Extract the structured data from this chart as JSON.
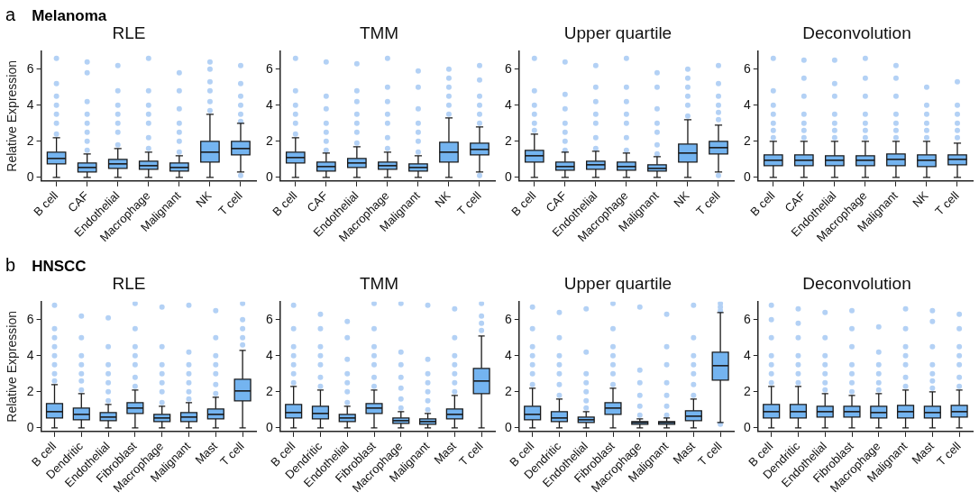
{
  "chart_data": [
    {
      "type": "box",
      "title": "RLE",
      "ylabel": "Relative Expression",
      "annotations": [
        "a",
        "Melanoma"
      ],
      "categories": [
        "B cell",
        "CAF",
        "Endothelial",
        "Macrophage",
        "Malignant",
        "NK",
        "T cell"
      ],
      "ylim": [
        -0.2,
        7
      ],
      "yticks": [
        0,
        2,
        4,
        6
      ],
      "grid": false,
      "legend": false,
      "marker": "circle",
      "series": [
        {
          "color": "#74b4f0",
          "boxes": [
            {
              "low": 0,
              "q1": 0.75,
              "median": 1.05,
              "q3": 1.4,
              "high": 2.2
            },
            {
              "low": 0,
              "q1": 0.3,
              "median": 0.55,
              "q3": 0.8,
              "high": 1.3
            },
            {
              "low": 0,
              "q1": 0.5,
              "median": 0.75,
              "q3": 1.0,
              "high": 1.6
            },
            {
              "low": 0,
              "q1": 0.45,
              "median": 0.65,
              "q3": 0.9,
              "high": 1.4
            },
            {
              "low": 0,
              "q1": 0.35,
              "median": 0.55,
              "q3": 0.8,
              "high": 1.2
            },
            {
              "low": 0,
              "q1": 0.85,
              "median": 1.4,
              "q3": 2.0,
              "high": 3.5
            },
            {
              "low": 0.3,
              "q1": 1.25,
              "median": 1.6,
              "q3": 2.0,
              "high": 3.0
            }
          ]
        },
        {
          "type": "scatter",
          "color": "#b3d1f5",
          "x": [
            "B cell",
            "B cell",
            "B cell",
            "B cell",
            "B cell",
            "B cell",
            "B cell",
            "CAF",
            "CAF",
            "CAF",
            "CAF",
            "CAF",
            "CAF",
            "CAF",
            "CAF",
            "Endothelial",
            "Endothelial",
            "Endothelial",
            "Endothelial",
            "Endothelial",
            "Endothelial",
            "Endothelial",
            "Macrophage",
            "Macrophage",
            "Macrophage",
            "Macrophage",
            "Macrophage",
            "Macrophage",
            "Macrophage",
            "Malignant",
            "Malignant",
            "Malignant",
            "Malignant",
            "Malignant",
            "Malignant",
            "Malignant",
            "NK",
            "NK",
            "NK",
            "NK",
            "NK",
            "NK",
            "T cell",
            "T cell",
            "T cell",
            "T cell",
            "T cell",
            "T cell",
            "T cell"
          ],
          "values": [
            2.4,
            3,
            3.5,
            4,
            4.5,
            5.2,
            6.6,
            1.5,
            2,
            2.5,
            3,
            3.5,
            4.2,
            5.8,
            6.4,
            1.8,
            2.5,
            3,
            3.5,
            4,
            4.8,
            6.2,
            1.6,
            2.2,
            3,
            3.5,
            4,
            4.8,
            6.6,
            1.4,
            2,
            2.5,
            3,
            3.8,
            4.8,
            5.8,
            3.7,
            4.2,
            4.8,
            5.3,
            6,
            6.4,
            0.1,
            3.1,
            3.5,
            4,
            4.5,
            5.2,
            6.2
          ]
        }
      ]
    },
    {
      "type": "box",
      "title": "TMM",
      "categories": [
        "B cell",
        "CAF",
        "Endothelial",
        "Macrophage",
        "Malignant",
        "NK",
        "T cell"
      ],
      "ylim": [
        -0.2,
        7
      ],
      "yticks": [
        0,
        2,
        4,
        6
      ],
      "grid": false,
      "legend": false,
      "marker": "circle",
      "series": [
        {
          "color": "#74b4f0",
          "boxes": [
            {
              "low": 0,
              "q1": 0.8,
              "median": 1.1,
              "q3": 1.4,
              "high": 2.2
            },
            {
              "low": 0,
              "q1": 0.35,
              "median": 0.6,
              "q3": 0.85,
              "high": 1.35
            },
            {
              "low": 0,
              "q1": 0.55,
              "median": 0.8,
              "q3": 1.05,
              "high": 1.7
            },
            {
              "low": 0,
              "q1": 0.45,
              "median": 0.65,
              "q3": 0.85,
              "high": 1.4
            },
            {
              "low": 0,
              "q1": 0.35,
              "median": 0.55,
              "q3": 0.75,
              "high": 1.2
            },
            {
              "low": 0,
              "q1": 0.85,
              "median": 1.4,
              "q3": 1.95,
              "high": 3.3
            },
            {
              "low": 0.3,
              "q1": 1.25,
              "median": 1.55,
              "q3": 1.9,
              "high": 2.8
            }
          ]
        },
        {
          "type": "scatter",
          "color": "#b3d1f5",
          "x": [
            "B cell",
            "B cell",
            "B cell",
            "B cell",
            "B cell",
            "B cell",
            "CAF",
            "CAF",
            "CAF",
            "CAF",
            "CAF",
            "CAF",
            "CAF",
            "Endothelial",
            "Endothelial",
            "Endothelial",
            "Endothelial",
            "Endothelial",
            "Endothelial",
            "Endothelial",
            "Macrophage",
            "Macrophage",
            "Macrophage",
            "Macrophage",
            "Macrophage",
            "Macrophage",
            "Macrophage",
            "Malignant",
            "Malignant",
            "Malignant",
            "Malignant",
            "Malignant",
            "Malignant",
            "Malignant",
            "NK",
            "NK",
            "NK",
            "NK",
            "NK",
            "NK",
            "T cell",
            "T cell",
            "T cell",
            "T cell",
            "T cell",
            "T cell",
            "T cell"
          ],
          "values": [
            2.4,
            3,
            3.5,
            4,
            4.8,
            6.6,
            1.5,
            2,
            2.5,
            3,
            3.8,
            4.5,
            6.4,
            1.9,
            2.5,
            3,
            3.5,
            4.2,
            4.8,
            6.3,
            1.6,
            2.2,
            3,
            3.5,
            4.2,
            5,
            6.6,
            1.4,
            2,
            2.5,
            3,
            3.8,
            5,
            5.9,
            3.5,
            4,
            4.5,
            5,
            5.5,
            6,
            0.1,
            3,
            3.5,
            4,
            4.5,
            5.4,
            6.2
          ]
        }
      ]
    },
    {
      "type": "box",
      "title": "Upper quartile",
      "categories": [
        "B cell",
        "CAF",
        "Endothelial",
        "Macrophage",
        "Malignant",
        "NK",
        "T cell"
      ],
      "ylim": [
        -0.2,
        7
      ],
      "yticks": [
        0,
        2,
        4,
        6
      ],
      "grid": false,
      "legend": false,
      "marker": "circle",
      "series": [
        {
          "color": "#74b4f0",
          "boxes": [
            {
              "low": 0,
              "q1": 0.85,
              "median": 1.2,
              "q3": 1.5,
              "high": 2.4
            },
            {
              "low": 0,
              "q1": 0.4,
              "median": 0.6,
              "q3": 0.85,
              "high": 1.4
            },
            {
              "low": 0,
              "q1": 0.45,
              "median": 0.7,
              "q3": 0.9,
              "high": 1.45
            },
            {
              "low": 0,
              "q1": 0.4,
              "median": 0.6,
              "q3": 0.85,
              "high": 1.35
            },
            {
              "low": 0,
              "q1": 0.35,
              "median": 0.5,
              "q3": 0.7,
              "high": 1.15
            },
            {
              "low": 0,
              "q1": 0.85,
              "median": 1.35,
              "q3": 1.85,
              "high": 3.2
            },
            {
              "low": 0.3,
              "q1": 1.3,
              "median": 1.65,
              "q3": 2.0,
              "high": 2.9
            }
          ]
        },
        {
          "type": "scatter",
          "color": "#b3d1f5",
          "x": [
            "B cell",
            "B cell",
            "B cell",
            "B cell",
            "B cell",
            "B cell",
            "CAF",
            "CAF",
            "CAF",
            "CAF",
            "CAF",
            "CAF",
            "CAF",
            "Endothelial",
            "Endothelial",
            "Endothelial",
            "Endothelial",
            "Endothelial",
            "Endothelial",
            "Endothelial",
            "Macrophage",
            "Macrophage",
            "Macrophage",
            "Macrophage",
            "Macrophage",
            "Macrophage",
            "Macrophage",
            "Malignant",
            "Malignant",
            "Malignant",
            "Malignant",
            "Malignant",
            "Malignant",
            "Malignant",
            "NK",
            "NK",
            "NK",
            "NK",
            "NK",
            "NK",
            "T cell",
            "T cell",
            "T cell",
            "T cell",
            "T cell",
            "T cell",
            "T cell"
          ],
          "values": [
            2.6,
            3,
            3.5,
            4,
            4.8,
            6.6,
            1.5,
            2,
            2.5,
            3,
            3.8,
            4.6,
            6.4,
            1.6,
            2.2,
            3,
            3.5,
            4.2,
            5,
            6.2,
            1.5,
            2.2,
            3,
            3.5,
            4.2,
            5,
            6.6,
            1.3,
            1.8,
            2.5,
            3,
            3.8,
            5,
            5.8,
            3.4,
            4,
            4.5,
            5,
            5.5,
            6,
            0.1,
            3.2,
            3.6,
            4,
            4.5,
            5.2,
            6.2
          ]
        }
      ]
    },
    {
      "type": "box",
      "title": "Deconvolution",
      "categories": [
        "B cell",
        "CAF",
        "Endothelial",
        "Macrophage",
        "Malignant",
        "NK",
        "T cell"
      ],
      "ylim": [
        -0.2,
        7
      ],
      "yticks": [
        0,
        2,
        4,
        6
      ],
      "grid": false,
      "legend": false,
      "marker": "circle",
      "series": [
        {
          "color": "#74b4f0",
          "boxes": [
            {
              "low": 0,
              "q1": 0.65,
              "median": 0.95,
              "q3": 1.25,
              "high": 2.0
            },
            {
              "low": 0,
              "q1": 0.65,
              "median": 0.95,
              "q3": 1.25,
              "high": 2.0
            },
            {
              "low": 0,
              "q1": 0.65,
              "median": 0.95,
              "q3": 1.2,
              "high": 2.0
            },
            {
              "low": 0,
              "q1": 0.65,
              "median": 0.95,
              "q3": 1.2,
              "high": 2.0
            },
            {
              "low": 0,
              "q1": 0.65,
              "median": 1.0,
              "q3": 1.3,
              "high": 2.0
            },
            {
              "low": 0,
              "q1": 0.6,
              "median": 0.95,
              "q3": 1.25,
              "high": 2.0
            },
            {
              "low": 0,
              "q1": 0.7,
              "median": 1.0,
              "q3": 1.25,
              "high": 1.9
            }
          ]
        },
        {
          "type": "scatter",
          "color": "#b3d1f5",
          "x": [
            "B cell",
            "B cell",
            "B cell",
            "B cell",
            "B cell",
            "B cell",
            "B cell",
            "CAF",
            "CAF",
            "CAF",
            "CAF",
            "CAF",
            "CAF",
            "CAF",
            "Endothelial",
            "Endothelial",
            "Endothelial",
            "Endothelial",
            "Endothelial",
            "Endothelial",
            "Endothelial",
            "Macrophage",
            "Macrophage",
            "Macrophage",
            "Macrophage",
            "Macrophage",
            "Macrophage",
            "Macrophage",
            "Malignant",
            "Malignant",
            "Malignant",
            "Malignant",
            "Malignant",
            "Malignant",
            "Malignant",
            "NK",
            "NK",
            "NK",
            "NK",
            "NK",
            "NK",
            "T cell",
            "T cell",
            "T cell",
            "T cell",
            "T cell",
            "T cell"
          ],
          "values": [
            2.2,
            2.6,
            3,
            3.5,
            4,
            4.8,
            6.6,
            2.2,
            2.6,
            3,
            3.5,
            4.5,
            5.5,
            6.5,
            2.2,
            2.6,
            3,
            3.5,
            4.5,
            5.2,
            6.5,
            2.2,
            2.6,
            3,
            3.5,
            4.5,
            5.5,
            6.6,
            2.2,
            2.6,
            3,
            3.5,
            4.5,
            5.5,
            6.2,
            2.2,
            2.6,
            3,
            3.5,
            4,
            5,
            2.2,
            2.6,
            3,
            3.5,
            4,
            5.3
          ]
        }
      ]
    },
    {
      "type": "box",
      "title": "RLE",
      "ylabel": "Relative Expression",
      "annotations": [
        "b",
        "HNSCC"
      ],
      "categories": [
        "B cell",
        "Dendritic",
        "Endothelial",
        "Fibroblast",
        "Macrophage",
        "Malignant",
        "Mast",
        "T cell"
      ],
      "ylim": [
        -0.2,
        7
      ],
      "yticks": [
        0,
        2,
        4,
        6
      ],
      "grid": false,
      "legend": false,
      "marker": "circle",
      "series": [
        {
          "color": "#74b4f0",
          "boxes": [
            {
              "low": 0,
              "q1": 0.55,
              "median": 0.9,
              "q3": 1.35,
              "high": 2.4
            },
            {
              "low": 0,
              "q1": 0.45,
              "median": 0.75,
              "q3": 1.1,
              "high": 1.9
            },
            {
              "low": 0,
              "q1": 0.4,
              "median": 0.6,
              "q3": 0.85,
              "high": 1.3
            },
            {
              "low": 0,
              "q1": 0.8,
              "median": 1.1,
              "q3": 1.4,
              "high": 2.1
            },
            {
              "low": 0,
              "q1": 0.35,
              "median": 0.55,
              "q3": 0.75,
              "high": 1.2
            },
            {
              "low": 0,
              "q1": 0.35,
              "median": 0.6,
              "q3": 0.85,
              "high": 1.4
            },
            {
              "low": 0,
              "q1": 0.5,
              "median": 0.75,
              "q3": 1.05,
              "high": 1.7
            },
            {
              "low": 0,
              "q1": 1.5,
              "median": 2.05,
              "q3": 2.7,
              "high": 4.3
            }
          ]
        },
        {
          "type": "scatter",
          "color": "#b3d1f5",
          "x": [
            "B cell",
            "B cell",
            "B cell",
            "B cell",
            "B cell",
            "B cell",
            "B cell",
            "B cell",
            "Dendritic",
            "Dendritic",
            "Dendritic",
            "Dendritic",
            "Dendritic",
            "Dendritic",
            "Dendritic",
            "Endothelial",
            "Endothelial",
            "Endothelial",
            "Endothelial",
            "Endothelial",
            "Endothelial",
            "Endothelial",
            "Fibroblast",
            "Fibroblast",
            "Fibroblast",
            "Fibroblast",
            "Fibroblast",
            "Fibroblast",
            "Fibroblast",
            "Macrophage",
            "Macrophage",
            "Macrophage",
            "Macrophage",
            "Macrophage",
            "Macrophage",
            "Macrophage",
            "Malignant",
            "Malignant",
            "Malignant",
            "Malignant",
            "Malignant",
            "Malignant",
            "Malignant",
            "Mast",
            "Mast",
            "Mast",
            "Mast",
            "Mast",
            "Mast",
            "Mast",
            "T cell",
            "T cell",
            "T cell",
            "T cell",
            "T cell"
          ],
          "values": [
            2.6,
            3,
            3.5,
            4,
            4.5,
            5,
            5.5,
            6.8,
            2.1,
            2.6,
            3,
            3.5,
            4,
            5,
            6.2,
            1.5,
            2,
            2.5,
            3,
            3.5,
            4.5,
            6.1,
            2.3,
            2.8,
            3.5,
            4,
            4.5,
            5.5,
            6.9,
            1.4,
            2,
            2.5,
            3,
            3.5,
            4.5,
            6.7,
            1.6,
            2,
            2.5,
            3,
            3.5,
            4.2,
            6.8,
            1.9,
            2.4,
            3,
            3.5,
            4,
            5,
            6.5,
            4.6,
            5,
            5.5,
            6,
            6.9
          ]
        }
      ]
    },
    {
      "type": "box",
      "title": "TMM",
      "categories": [
        "B cell",
        "Dendritic",
        "Endothelial",
        "Fibroblast",
        "Macrophage",
        "Malignant",
        "Mast",
        "T cell"
      ],
      "ylim": [
        -0.2,
        7
      ],
      "yticks": [
        0,
        2,
        4,
        6
      ],
      "grid": false,
      "legend": false,
      "marker": "circle",
      "series": [
        {
          "color": "#74b4f0",
          "boxes": [
            {
              "low": 0,
              "q1": 0.55,
              "median": 0.85,
              "q3": 1.3,
              "high": 2.3
            },
            {
              "low": 0,
              "q1": 0.5,
              "median": 0.8,
              "q3": 1.2,
              "high": 2.1
            },
            {
              "low": 0,
              "q1": 0.35,
              "median": 0.55,
              "q3": 0.75,
              "high": 1.2
            },
            {
              "low": 0,
              "q1": 0.8,
              "median": 1.1,
              "q3": 1.35,
              "high": 2.1
            },
            {
              "low": 0,
              "q1": 0.25,
              "median": 0.4,
              "q3": 0.55,
              "high": 0.9
            },
            {
              "low": 0,
              "q1": 0.2,
              "median": 0.35,
              "q3": 0.5,
              "high": 0.8
            },
            {
              "low": 0,
              "q1": 0.5,
              "median": 0.75,
              "q3": 1.05,
              "high": 1.8
            },
            {
              "low": 0,
              "q1": 1.9,
              "median": 2.6,
              "q3": 3.3,
              "high": 5.1
            }
          ]
        },
        {
          "type": "scatter",
          "color": "#b3d1f5",
          "x": [
            "B cell",
            "B cell",
            "B cell",
            "B cell",
            "B cell",
            "B cell",
            "B cell",
            "Dendritic",
            "Dendritic",
            "Dendritic",
            "Dendritic",
            "Dendritic",
            "Dendritic",
            "Dendritic",
            "Endothelial",
            "Endothelial",
            "Endothelial",
            "Endothelial",
            "Endothelial",
            "Endothelial",
            "Endothelial",
            "Fibroblast",
            "Fibroblast",
            "Fibroblast",
            "Fibroblast",
            "Fibroblast",
            "Fibroblast",
            "Fibroblast",
            "Macrophage",
            "Macrophage",
            "Macrophage",
            "Macrophage",
            "Macrophage",
            "Macrophage",
            "Macrophage",
            "Malignant",
            "Malignant",
            "Malignant",
            "Malignant",
            "Malignant",
            "Malignant",
            "Malignant",
            "Mast",
            "Mast",
            "Mast",
            "Mast",
            "Mast",
            "Mast",
            "Mast",
            "T cell",
            "T cell",
            "T cell",
            "T cell"
          ],
          "values": [
            2.5,
            3,
            3.5,
            4,
            4.5,
            5.5,
            6.8,
            2.3,
            2.8,
            3.5,
            4,
            4.5,
            5.5,
            6.3,
            1.4,
            2,
            2.5,
            3,
            3.8,
            5,
            5.9,
            2.3,
            2.8,
            3.5,
            4,
            4.5,
            5.5,
            6.9,
            1.1,
            1.6,
            2.2,
            2.8,
            3.5,
            4.2,
            6.9,
            1,
            1.5,
            2,
            2.5,
            3,
            3.8,
            6.8,
            2,
            2.5,
            3,
            3.5,
            4,
            5,
            6.6,
            5.4,
            5.8,
            6.2,
            6.9
          ]
        }
      ]
    },
    {
      "type": "box",
      "title": "Upper quartile",
      "categories": [
        "B cell",
        "Dendritic",
        "Endothelial",
        "Fibroblast",
        "Macrophage",
        "Malignant",
        "Mast",
        "T cell"
      ],
      "ylim": [
        -0.2,
        7
      ],
      "yticks": [
        0,
        2,
        4,
        6
      ],
      "grid": false,
      "legend": false,
      "marker": "circle",
      "series": [
        {
          "color": "#74b4f0",
          "boxes": [
            {
              "low": 0,
              "q1": 0.45,
              "median": 0.75,
              "q3": 1.2,
              "high": 2.2
            },
            {
              "low": 0,
              "q1": 0.35,
              "median": 0.55,
              "q3": 0.9,
              "high": 1.6
            },
            {
              "low": 0,
              "q1": 0.3,
              "median": 0.45,
              "q3": 0.6,
              "high": 0.9
            },
            {
              "low": 0,
              "q1": 0.75,
              "median": 1.1,
              "q3": 1.4,
              "high": 2.2
            },
            {
              "low": 0,
              "q1": 0.2,
              "median": 0.3,
              "q3": 0.35,
              "high": 0.5
            },
            {
              "low": 0,
              "q1": 0.2,
              "median": 0.3,
              "q3": 0.35,
              "high": 0.55
            },
            {
              "low": 0,
              "q1": 0.4,
              "median": 0.65,
              "q3": 0.95,
              "high": 1.6
            },
            {
              "low": 0.3,
              "q1": 2.65,
              "median": 3.45,
              "q3": 4.2,
              "high": 6.4
            }
          ]
        },
        {
          "type": "scatter",
          "color": "#b3d1f5",
          "x": [
            "B cell",
            "B cell",
            "B cell",
            "B cell",
            "B cell",
            "B cell",
            "B cell",
            "Dendritic",
            "Dendritic",
            "Dendritic",
            "Dendritic",
            "Dendritic",
            "Dendritic",
            "Dendritic",
            "Endothelial",
            "Endothelial",
            "Endothelial",
            "Endothelial",
            "Endothelial",
            "Endothelial",
            "Endothelial",
            "Fibroblast",
            "Fibroblast",
            "Fibroblast",
            "Fibroblast",
            "Fibroblast",
            "Fibroblast",
            "Fibroblast",
            "Macrophage",
            "Macrophage",
            "Macrophage",
            "Macrophage",
            "Macrophage",
            "Macrophage",
            "Malignant",
            "Malignant",
            "Malignant",
            "Malignant",
            "Malignant",
            "Malignant",
            "Malignant",
            "Mast",
            "Mast",
            "Mast",
            "Mast",
            "Mast",
            "Mast",
            "Mast",
            "T cell",
            "T cell",
            "T cell",
            "T cell",
            "T cell"
          ],
          "values": [
            2.4,
            3,
            3.5,
            4,
            4.5,
            5.5,
            6.7,
            1.8,
            2.4,
            3,
            3.5,
            4,
            5,
            6.4,
            1.1,
            1.5,
            2,
            2.5,
            3,
            4.2,
            6.6,
            2.4,
            3,
            3.5,
            4,
            4.5,
            5.5,
            6.9,
            0.7,
            1.2,
            1.8,
            2.5,
            3.2,
            6.7,
            0.7,
            1.2,
            1.8,
            2.5,
            3.5,
            4.5,
            6.3,
            1.8,
            2.4,
            3,
            3.5,
            4,
            5,
            6.8,
            null,
            0.2,
            6.5,
            6.7,
            6.9
          ]
        }
      ]
    },
    {
      "type": "box",
      "title": "Deconvolution",
      "categories": [
        "B cell",
        "Dendritic",
        "Endothelial",
        "Fibroblast",
        "Macrophage",
        "Malignant",
        "Mast",
        "T cell"
      ],
      "ylim": [
        -0.2,
        7
      ],
      "yticks": [
        0,
        2,
        4,
        6
      ],
      "grid": false,
      "legend": false,
      "marker": "circle",
      "series": [
        {
          "color": "#74b4f0",
          "boxes": [
            {
              "low": 0,
              "q1": 0.55,
              "median": 0.9,
              "q3": 1.3,
              "high": 2.3
            },
            {
              "low": 0,
              "q1": 0.55,
              "median": 0.9,
              "q3": 1.3,
              "high": 2.3
            },
            {
              "low": 0,
              "q1": 0.6,
              "median": 0.9,
              "q3": 1.2,
              "high": 1.9
            },
            {
              "low": 0,
              "q1": 0.6,
              "median": 0.9,
              "q3": 1.2,
              "high": 1.8
            },
            {
              "low": 0,
              "q1": 0.55,
              "median": 0.85,
              "q3": 1.2,
              "high": 1.9
            },
            {
              "low": 0,
              "q1": 0.55,
              "median": 0.9,
              "q3": 1.25,
              "high": 2.1
            },
            {
              "low": 0,
              "q1": 0.55,
              "median": 0.85,
              "q3": 1.2,
              "high": 2.0
            },
            {
              "low": 0,
              "q1": 0.6,
              "median": 0.9,
              "q3": 1.25,
              "high": 2.1
            }
          ]
        },
        {
          "type": "scatter",
          "color": "#b3d1f5",
          "x": [
            "B cell",
            "B cell",
            "B cell",
            "B cell",
            "B cell",
            "B cell",
            "B cell",
            "Dendritic",
            "Dendritic",
            "Dendritic",
            "Dendritic",
            "Dendritic",
            "Dendritic",
            "Dendritic",
            "Endothelial",
            "Endothelial",
            "Endothelial",
            "Endothelial",
            "Endothelial",
            "Endothelial",
            "Endothelial",
            "Fibroblast",
            "Fibroblast",
            "Fibroblast",
            "Fibroblast",
            "Fibroblast",
            "Fibroblast",
            "Fibroblast",
            "Macrophage",
            "Macrophage",
            "Macrophage",
            "Macrophage",
            "Macrophage",
            "Macrophage",
            "Malignant",
            "Malignant",
            "Malignant",
            "Malignant",
            "Malignant",
            "Malignant",
            "Malignant",
            "Mast",
            "Mast",
            "Mast",
            "Mast",
            "Mast",
            "Mast",
            "Mast",
            "T cell",
            "T cell",
            "T cell",
            "T cell",
            "T cell",
            "T cell",
            "T cell"
          ],
          "values": [
            2.5,
            3,
            3.5,
            4,
            5,
            6,
            6.8,
            2.5,
            3,
            3.5,
            4,
            5,
            5.8,
            6.6,
            2.1,
            2.5,
            3,
            3.5,
            4,
            5,
            6.4,
            2,
            2.5,
            3,
            3.5,
            4.5,
            5.5,
            6.5,
            2.1,
            2.5,
            3,
            3.5,
            4.2,
            5.6,
            2.3,
            2.8,
            3.5,
            4,
            4.5,
            5.5,
            6.6,
            2.2,
            2.6,
            3,
            3.5,
            4.5,
            5.9,
            6.5,
            2.3,
            2.8,
            3.5,
            4,
            4.5,
            5.5,
            6.3
          ]
        }
      ]
    }
  ]
}
